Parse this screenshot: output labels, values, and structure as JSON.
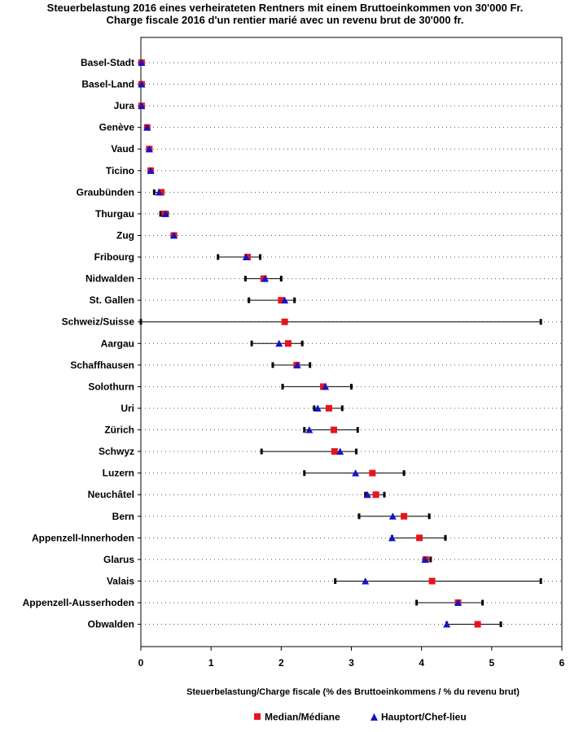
{
  "chart_data": {
    "type": "range-dot",
    "title": "Steuerbelastung 2016 eines verheirateten Rentners mit einem Bruttoeinkommen von 30'000 Fr.",
    "subtitle": "Charge fiscale 2016 d'un rentier marié avec un revenu brut de 30'000 fr.",
    "xlabel": "Steuerbelastung/Charge fiscale (% des Bruttoeinkommens / % du revenu brut)",
    "xlim": [
      0,
      6
    ],
    "xticks": [
      0,
      1,
      2,
      3,
      4,
      5,
      6
    ],
    "grid": "dotted horizontal",
    "legend": [
      {
        "name": "Median/Médiane",
        "marker": "square",
        "color": "#e8141c"
      },
      {
        "name": "Hauptort/Chef-lieu",
        "marker": "triangle",
        "color": "#1414c8"
      }
    ],
    "categories": [
      "Basel-Stadt",
      "Basel-Land",
      "Jura",
      "Genève",
      "Vaud",
      "Ticino",
      "Graubünden",
      "Thurgau",
      "Zug",
      "Fribourg",
      "Nidwalden",
      "St. Gallen",
      "Schweiz/Suisse",
      "Aargau",
      "Schaffhausen",
      "Solothurn",
      "Uri",
      "Zürich",
      "Schwyz",
      "Luzern",
      "Neuchâtel",
      "Bern",
      "Appenzell-Innerhoden",
      "Glarus",
      "Valais",
      "Appenzell-Ausserhoden",
      "Obwalden"
    ],
    "min": [
      0,
      0,
      0,
      0.08,
      0.11,
      0.12,
      0.19,
      0.28,
      0.44,
      1.1,
      1.49,
      1.54,
      0,
      1.58,
      1.88,
      2.02,
      2.47,
      2.33,
      1.72,
      2.33,
      3.2,
      3.11,
      3.58,
      4.03,
      2.77,
      3.93,
      4.36
    ],
    "max": [
      0,
      0,
      0,
      0.09,
      0.13,
      0.15,
      0.32,
      0.38,
      0.5,
      1.7,
      2.0,
      2.19,
      5.7,
      2.3,
      2.41,
      3.0,
      2.87,
      3.09,
      3.07,
      3.75,
      3.47,
      4.11,
      4.34,
      4.13,
      5.7,
      4.87,
      5.13
    ],
    "median": [
      0.01,
      0.01,
      0.01,
      0.09,
      0.12,
      0.14,
      0.29,
      0.34,
      0.47,
      1.52,
      1.75,
      2.0,
      2.05,
      2.1,
      2.22,
      2.6,
      2.68,
      2.75,
      2.76,
      3.3,
      3.35,
      3.75,
      3.97,
      4.06,
      4.15,
      4.52,
      4.8
    ],
    "hauptort": [
      0.01,
      0.01,
      0.01,
      0.09,
      0.12,
      0.14,
      0.26,
      0.35,
      0.47,
      1.5,
      1.77,
      2.05,
      null,
      1.97,
      2.23,
      2.63,
      2.52,
      2.4,
      2.84,
      3.06,
      3.23,
      3.59,
      3.58,
      4.05,
      3.2,
      4.52,
      4.36
    ]
  }
}
